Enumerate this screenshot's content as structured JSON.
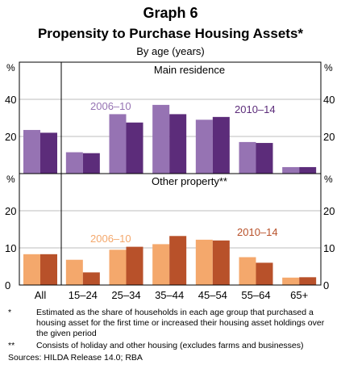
{
  "header": {
    "title": "Graph 6",
    "subtitle": "Propensity to Purchase Housing Assets*",
    "caption": "By age (years)"
  },
  "chart_data": [
    {
      "type": "bar",
      "panel_title": "Main residence",
      "y_unit": "%",
      "categories": [
        "All",
        "15–24",
        "25–34",
        "35–44",
        "45–54",
        "55–64",
        "65+"
      ],
      "series": [
        {
          "name": "2006–10",
          "color": "#9673b3",
          "values": [
            23.5,
            11.5,
            32,
            37,
            29,
            17,
            3.5
          ]
        },
        {
          "name": "2010–14",
          "color": "#5c2c7a",
          "values": [
            22,
            11,
            27.5,
            32,
            30.5,
            16.5,
            3.5
          ]
        }
      ],
      "ylim": [
        0,
        60
      ],
      "yticks": [
        20,
        40
      ],
      "grid": true,
      "legend": "labels-in-plot"
    },
    {
      "type": "bar",
      "panel_title": "Other property**",
      "y_unit": "%",
      "categories": [
        "All",
        "15–24",
        "25–34",
        "35–44",
        "45–54",
        "55–64",
        "65+"
      ],
      "series": [
        {
          "name": "2006–10",
          "color": "#f4a86c",
          "values": [
            8.3,
            6.8,
            9.5,
            11,
            12.2,
            7.5,
            2
          ]
        },
        {
          "name": "2010–14",
          "color": "#b8512a",
          "values": [
            8.3,
            3.4,
            10.3,
            13.2,
            12,
            6,
            2.1
          ]
        }
      ],
      "ylim": [
        0,
        30
      ],
      "yticks": [
        0,
        10,
        20
      ],
      "grid": true,
      "legend": "labels-in-plot"
    }
  ],
  "footnotes": [
    {
      "mark": "*",
      "text": "Estimated as the share of households in each age group that purchased a housing asset for the first time or increased their housing asset holdings over the given period"
    },
    {
      "mark": "**",
      "text": "Consists of holiday and other housing (excludes farms and businesses)"
    }
  ],
  "sources": "Sources:  HILDA Release 14.0; RBA"
}
